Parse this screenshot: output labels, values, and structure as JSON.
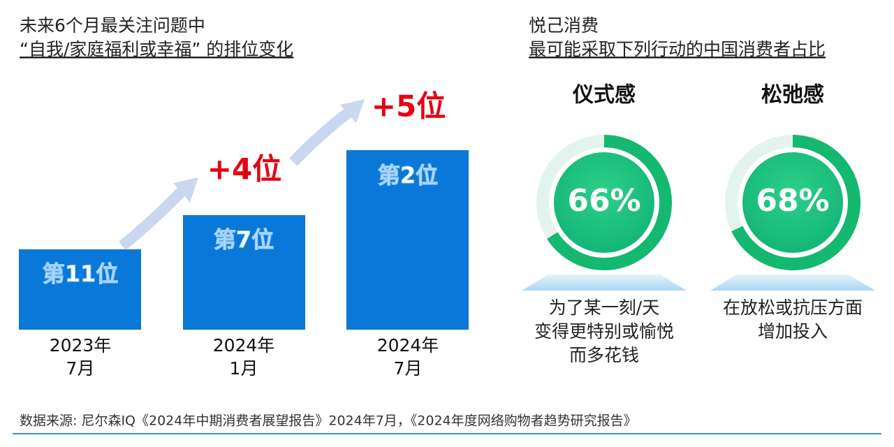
{
  "left": {
    "title_line1": "未来6个月最关注问题中",
    "title_line2": "“自我/家庭福利或幸福” 的排位变化",
    "bars": [
      {
        "rank": "第11位",
        "period": [
          "2023年",
          "7月"
        ]
      },
      {
        "rank": "第7位",
        "period": [
          "2024年",
          "1月"
        ]
      },
      {
        "rank": "第2位",
        "period": [
          "2024年",
          "7月"
        ]
      }
    ],
    "changes": [
      "+4位",
      "+5位"
    ]
  },
  "right": {
    "title_line1": "悦己消费",
    "title_line2": "最可能采取下列行动的中国消费者占比",
    "gauges": [
      {
        "title": "仪式感",
        "percent": 66,
        "label": "66%",
        "caption": [
          "为了某一刻/天",
          "变得更特别或愉悦",
          "而多花钱"
        ]
      },
      {
        "title": "松弛感",
        "percent": 68,
        "label": "68%",
        "caption": [
          "在放松或抗压方面",
          "增加投入"
        ]
      }
    ]
  },
  "footer": {
    "source": "数据来源: 尼尔森IQ《2024年中期消费者展望报告》2024年7月，《2024年度网络购物者趋势研究报告》"
  }
}
